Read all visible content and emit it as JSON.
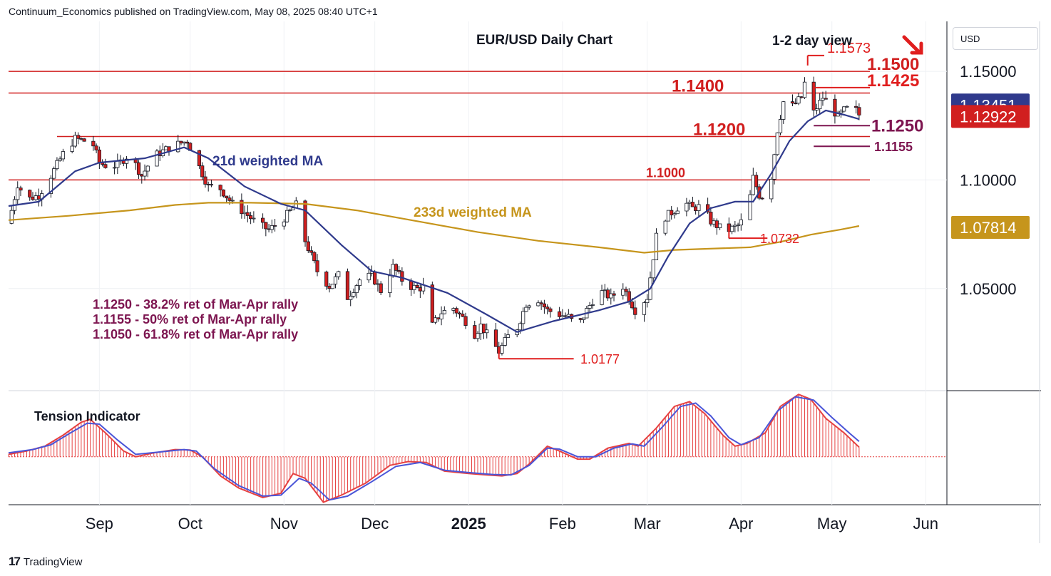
{
  "header": {
    "published": "Continuum_Economics published on TradingView.com, May 08, 2025 08:40 UTC+1"
  },
  "brand": {
    "name": "TradingView"
  },
  "currency_button": {
    "label": "USD"
  },
  "chart_data": [
    {
      "type": "candlestick",
      "title": "EUR/USD Daily Chart",
      "subtitle": "1-2 day view",
      "direction_arrow": "down",
      "ylim": [
        1.003,
        1.173
      ],
      "yticks": [
        {
          "value": 1.15,
          "label": "1.15000"
        },
        {
          "value": 1.1,
          "label": "1.10000"
        },
        {
          "value": 1.05,
          "label": "1.05000"
        }
      ],
      "xticks": [
        {
          "day": 30,
          "label": "Sep",
          "bold": false
        },
        {
          "day": 60,
          "label": "Oct",
          "bold": false
        },
        {
          "day": 91,
          "label": "Nov",
          "bold": false
        },
        {
          "day": 121,
          "label": "Dec",
          "bold": false
        },
        {
          "day": 152,
          "label": "2025",
          "bold": true
        },
        {
          "day": 183,
          "label": "Feb",
          "bold": false
        },
        {
          "day": 211,
          "label": "Mar",
          "bold": false
        },
        {
          "day": 242,
          "label": "Apr",
          "bold": false
        },
        {
          "day": 272,
          "label": "May",
          "bold": false
        },
        {
          "day": 303,
          "label": "Jun",
          "bold": false
        }
      ],
      "x_range_days": [
        0,
        310
      ],
      "price_path": [
        [
          0,
          1.08
        ],
        [
          3,
          1.098
        ],
        [
          6,
          1.091
        ],
        [
          10,
          1.093
        ],
        [
          14,
          1.102
        ],
        [
          18,
          1.112
        ],
        [
          22,
          1.119
        ],
        [
          25,
          1.118
        ],
        [
          28,
          1.116
        ],
        [
          30,
          1.108
        ],
        [
          33,
          1.106
        ],
        [
          36,
          1.107
        ],
        [
          40,
          1.112
        ],
        [
          44,
          1.102
        ],
        [
          48,
          1.111
        ],
        [
          52,
          1.114
        ],
        [
          55,
          1.116
        ],
        [
          59,
          1.118
        ],
        [
          62,
          1.109
        ],
        [
          66,
          1.097
        ],
        [
          70,
          1.096
        ],
        [
          74,
          1.089
        ],
        [
          78,
          1.085
        ],
        [
          82,
          1.08
        ],
        [
          86,
          1.077
        ],
        [
          90,
          1.081
        ],
        [
          94,
          1.087
        ],
        [
          96,
          1.09
        ],
        [
          98,
          1.072
        ],
        [
          102,
          1.058
        ],
        [
          106,
          1.051
        ],
        [
          110,
          1.058
        ],
        [
          112,
          1.046
        ],
        [
          116,
          1.054
        ],
        [
          120,
          1.056
        ],
        [
          123,
          1.049
        ],
        [
          127,
          1.06
        ],
        [
          131,
          1.052
        ],
        [
          135,
          1.05
        ],
        [
          138,
          1.051
        ],
        [
          140,
          1.033
        ],
        [
          143,
          1.039
        ],
        [
          147,
          1.041
        ],
        [
          151,
          1.035
        ],
        [
          153,
          1.027
        ],
        [
          156,
          1.033
        ],
        [
          159,
          1.027
        ],
        [
          162,
          1.021
        ],
        [
          165,
          1.028
        ],
        [
          168,
          1.032
        ],
        [
          171,
          1.043
        ],
        [
          175,
          1.045
        ],
        [
          178,
          1.04
        ],
        [
          182,
          1.038
        ],
        [
          185,
          1.037
        ],
        [
          188,
          1.032
        ],
        [
          191,
          1.04
        ],
        [
          195,
          1.049
        ],
        [
          199,
          1.046
        ],
        [
          203,
          1.051
        ],
        [
          207,
          1.04
        ],
        [
          211,
          1.046
        ],
        [
          214,
          1.074
        ],
        [
          217,
          1.083
        ],
        [
          220,
          1.086
        ],
        [
          223,
          1.09
        ],
        [
          226,
          1.087
        ],
        [
          229,
          1.088
        ],
        [
          232,
          1.081
        ],
        [
          235,
          1.078
        ],
        [
          238,
          1.077
        ],
        [
          241,
          1.079
        ],
        [
          244,
          1.084
        ],
        [
          246,
          1.101
        ],
        [
          248,
          1.093
        ],
        [
          251,
          1.091
        ],
        [
          254,
          1.123
        ],
        [
          256,
          1.136
        ],
        [
          259,
          1.134
        ],
        [
          262,
          1.138
        ],
        [
          264,
          1.151
        ],
        [
          266,
          1.131
        ],
        [
          269,
          1.138
        ],
        [
          272,
          1.133
        ],
        [
          274,
          1.129
        ],
        [
          276,
          1.132
        ],
        [
          279,
          1.134
        ],
        [
          281,
          1.13
        ]
      ],
      "ma21_path": [
        [
          0,
          1.088
        ],
        [
          10,
          1.09
        ],
        [
          22,
          1.104
        ],
        [
          30,
          1.108
        ],
        [
          45,
          1.11
        ],
        [
          58,
          1.115
        ],
        [
          66,
          1.11
        ],
        [
          78,
          1.097
        ],
        [
          90,
          1.089
        ],
        [
          98,
          1.086
        ],
        [
          110,
          1.07
        ],
        [
          120,
          1.058
        ],
        [
          130,
          1.055
        ],
        [
          145,
          1.048
        ],
        [
          158,
          1.038
        ],
        [
          168,
          1.03
        ],
        [
          180,
          1.035
        ],
        [
          195,
          1.04
        ],
        [
          205,
          1.044
        ],
        [
          212,
          1.05
        ],
        [
          218,
          1.065
        ],
        [
          225,
          1.08
        ],
        [
          232,
          1.087
        ],
        [
          240,
          1.09
        ],
        [
          246,
          1.09
        ],
        [
          252,
          1.103
        ],
        [
          258,
          1.118
        ],
        [
          264,
          1.127
        ],
        [
          270,
          1.132
        ],
        [
          276,
          1.13
        ],
        [
          281,
          1.128
        ]
      ],
      "ma233_path": [
        [
          0,
          1.0815
        ],
        [
          20,
          1.0835
        ],
        [
          40,
          1.086
        ],
        [
          55,
          1.0885
        ],
        [
          66,
          1.0895
        ],
        [
          80,
          1.0895
        ],
        [
          98,
          1.089
        ],
        [
          115,
          1.086
        ],
        [
          135,
          1.081
        ],
        [
          155,
          1.076
        ],
        [
          175,
          1.072
        ],
        [
          195,
          1.069
        ],
        [
          210,
          1.0665
        ],
        [
          220,
          1.0678
        ],
        [
          235,
          1.0685
        ],
        [
          245,
          1.069
        ],
        [
          255,
          1.0715
        ],
        [
          265,
          1.0748
        ],
        [
          275,
          1.0772
        ],
        [
          281,
          1.0788
        ]
      ],
      "horizontal_lines": [
        {
          "value": 1.15,
          "from_day": 0,
          "label": "1.1500"
        },
        {
          "value": 1.14,
          "from_day": 0,
          "label": "1.1400"
        },
        {
          "value": 1.12,
          "from_day": 16,
          "label": "1.1200"
        },
        {
          "value": 1.1,
          "from_day": 0,
          "label": "1.1000"
        }
      ],
      "marker_lines": [
        {
          "value": 1.1573,
          "from_day": 264,
          "to_day": 269,
          "label": "1.1573",
          "color": "#e01e1e"
        },
        {
          "value": 1.1425,
          "from_day": 266,
          "to_day": 279,
          "label": "1.1425",
          "color": "#e01e1e"
        },
        {
          "value": 1.125,
          "from_day": 266,
          "to_day": 279,
          "label": "1.1250",
          "color": "#7d1550"
        },
        {
          "value": 1.1155,
          "from_day": 266,
          "to_day": 279,
          "label": "1.1155",
          "color": "#7d1550"
        },
        {
          "value": 1.0732,
          "from_day": 238,
          "to_day": 246,
          "label": "1.0732",
          "color": "#e01e1e"
        },
        {
          "value": 1.0177,
          "from_day": 162,
          "to_day": 182,
          "label": "1.0177",
          "color": "#e01e1e"
        }
      ],
      "price_labels": [
        {
          "value": 1.13451,
          "label": "1.13451",
          "color": "#2f3a8c"
        },
        {
          "value": 1.12922,
          "label": "1.12922",
          "color": "#d11f1f"
        },
        {
          "value": 1.07814,
          "label": "1.07814",
          "color": "#c6951c"
        }
      ],
      "series": [
        {
          "name": "21d weighted MA",
          "color": "#2f3a8c"
        },
        {
          "name": "233d weighted MA",
          "color": "#c6951c"
        }
      ],
      "annotations": [
        "1.1250 - 38.2% ret of Mar-Apr rally",
        "1.1155 - 50% ret of Mar-Apr rally",
        "1.1050 - 61.8% ret of Mar-Apr rally"
      ],
      "grid": true
    },
    {
      "type": "histogram",
      "title": "Tension Indicator",
      "ylim": [
        -1.0,
        1.2
      ],
      "values_path": [
        [
          0,
          0.05
        ],
        [
          6,
          0.12
        ],
        [
          12,
          0.22
        ],
        [
          18,
          0.45
        ],
        [
          24,
          0.72
        ],
        [
          27,
          0.78
        ],
        [
          32,
          0.5
        ],
        [
          38,
          0.12
        ],
        [
          42,
          0.0
        ],
        [
          48,
          0.08
        ],
        [
          55,
          0.15
        ],
        [
          60,
          0.14
        ],
        [
          64,
          0.0
        ],
        [
          70,
          -0.4
        ],
        [
          76,
          -0.65
        ],
        [
          84,
          -0.85
        ],
        [
          90,
          -0.76
        ],
        [
          94,
          -0.35
        ],
        [
          98,
          -0.45
        ],
        [
          104,
          -0.95
        ],
        [
          110,
          -0.8
        ],
        [
          118,
          -0.55
        ],
        [
          126,
          -0.18
        ],
        [
          132,
          -0.1
        ],
        [
          138,
          -0.12
        ],
        [
          144,
          -0.3
        ],
        [
          152,
          -0.35
        ],
        [
          158,
          -0.38
        ],
        [
          163,
          -0.4
        ],
        [
          168,
          -0.35
        ],
        [
          172,
          -0.15
        ],
        [
          178,
          0.22
        ],
        [
          182,
          0.12
        ],
        [
          188,
          -0.05
        ],
        [
          192,
          -0.05
        ],
        [
          198,
          0.18
        ],
        [
          205,
          0.28
        ],
        [
          208,
          0.22
        ],
        [
          214,
          0.6
        ],
        [
          220,
          1.05
        ],
        [
          225,
          1.15
        ],
        [
          230,
          0.9
        ],
        [
          236,
          0.45
        ],
        [
          240,
          0.22
        ],
        [
          244,
          0.28
        ],
        [
          250,
          0.5
        ],
        [
          255,
          1.05
        ],
        [
          261,
          1.3
        ],
        [
          265,
          1.2
        ],
        [
          270,
          0.8
        ],
        [
          276,
          0.5
        ],
        [
          281,
          0.2
        ]
      ],
      "signal_path": [
        [
          0,
          0.08
        ],
        [
          8,
          0.15
        ],
        [
          14,
          0.25
        ],
        [
          20,
          0.48
        ],
        [
          26,
          0.7
        ],
        [
          30,
          0.68
        ],
        [
          36,
          0.35
        ],
        [
          42,
          0.05
        ],
        [
          50,
          0.1
        ],
        [
          58,
          0.15
        ],
        [
          62,
          0.12
        ],
        [
          68,
          -0.25
        ],
        [
          76,
          -0.6
        ],
        [
          84,
          -0.82
        ],
        [
          90,
          -0.8
        ],
        [
          96,
          -0.45
        ],
        [
          100,
          -0.55
        ],
        [
          106,
          -0.9
        ],
        [
          112,
          -0.82
        ],
        [
          120,
          -0.52
        ],
        [
          128,
          -0.2
        ],
        [
          136,
          -0.12
        ],
        [
          144,
          -0.28
        ],
        [
          152,
          -0.33
        ],
        [
          160,
          -0.37
        ],
        [
          166,
          -0.38
        ],
        [
          172,
          -0.18
        ],
        [
          178,
          0.18
        ],
        [
          182,
          0.16
        ],
        [
          188,
          0.0
        ],
        [
          194,
          0.0
        ],
        [
          200,
          0.18
        ],
        [
          206,
          0.27
        ],
        [
          210,
          0.22
        ],
        [
          216,
          0.62
        ],
        [
          222,
          1.05
        ],
        [
          227,
          1.12
        ],
        [
          232,
          0.85
        ],
        [
          238,
          0.4
        ],
        [
          242,
          0.25
        ],
        [
          248,
          0.4
        ],
        [
          254,
          0.95
        ],
        [
          260,
          1.25
        ],
        [
          266,
          1.18
        ],
        [
          272,
          0.82
        ],
        [
          278,
          0.48
        ],
        [
          281,
          0.32
        ]
      ],
      "line_color": "#4a55d8",
      "bar_color": "#e64141"
    }
  ]
}
